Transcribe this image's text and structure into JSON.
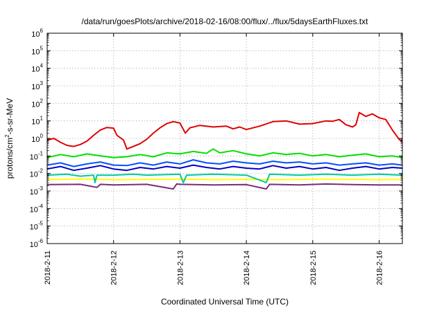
{
  "chart_data": {
    "type": "line",
    "title": "/data/run/goesPlots/archive/2018-02-16/08:00/flux/../flux/5daysEarthFluxes.txt",
    "xlabel": "Coordinated Universal Time (UTC)",
    "ylabel_prefix": "protons/cm",
    "ylabel_sup": "2",
    "ylabel_suffix": "-s-sr-MeV",
    "yscale": "log",
    "ylim_exp": [
      -6,
      6
    ],
    "ytick_exponents": [
      -6,
      -5,
      -4,
      -3,
      -2,
      -1,
      0,
      1,
      2,
      3,
      4,
      5,
      6
    ],
    "ytick_base": "10",
    "xlim_days": [
      0,
      5.35
    ],
    "x_ticks": [
      {
        "label": "2018-2-11",
        "day": 0
      },
      {
        "label": "2018-2-12",
        "day": 1
      },
      {
        "label": "2018-2-13",
        "day": 2
      },
      {
        "label": "2018-2-14",
        "day": 3
      },
      {
        "label": "2018-2-15",
        "day": 4
      },
      {
        "label": "2018-2-16",
        "day": 5
      }
    ],
    "grid": true,
    "series": [
      {
        "color": "#7a2a7a",
        "points": [
          [
            0,
            0.0023
          ],
          [
            0.5,
            0.0024
          ],
          [
            0.75,
            0.0016
          ],
          [
            0.8,
            0.0024
          ],
          [
            1.0,
            0.0022
          ],
          [
            1.5,
            0.0024
          ],
          [
            1.9,
            0.0013
          ],
          [
            1.95,
            0.0025
          ],
          [
            2.0,
            0.0024
          ],
          [
            2.5,
            0.0022
          ],
          [
            3.0,
            0.0023
          ],
          [
            3.3,
            0.0013
          ],
          [
            3.35,
            0.0024
          ],
          [
            3.8,
            0.0022
          ],
          [
            4.2,
            0.0025
          ],
          [
            4.6,
            0.0023
          ],
          [
            5.0,
            0.0022
          ],
          [
            5.35,
            0.0022
          ]
        ]
      },
      {
        "color": "#ffff00",
        "points": [
          [
            0,
            0.0045
          ],
          [
            0.5,
            0.0048
          ],
          [
            1.0,
            0.0044
          ],
          [
            1.5,
            0.0046
          ],
          [
            2.0,
            0.0047
          ],
          [
            2.5,
            0.0045
          ],
          [
            3.0,
            0.0046
          ],
          [
            3.5,
            0.0044
          ],
          [
            4.0,
            0.0047
          ],
          [
            4.5,
            0.0046
          ],
          [
            5.0,
            0.0045
          ],
          [
            5.35,
            0.0046
          ]
        ]
      },
      {
        "color": "#00c8a0",
        "points": [
          [
            0,
            0.008
          ],
          [
            0.3,
            0.009
          ],
          [
            0.5,
            0.007
          ],
          [
            0.7,
            0.008
          ],
          [
            0.72,
            0.003
          ],
          [
            0.75,
            0.008
          ],
          [
            1.0,
            0.008
          ],
          [
            1.3,
            0.009
          ],
          [
            1.5,
            0.008
          ],
          [
            2.0,
            0.009
          ],
          [
            2.05,
            0.003
          ],
          [
            2.1,
            0.008
          ],
          [
            2.5,
            0.009
          ],
          [
            3.0,
            0.008
          ],
          [
            3.3,
            0.003
          ],
          [
            3.35,
            0.009
          ],
          [
            3.8,
            0.008
          ],
          [
            4.2,
            0.009
          ],
          [
            4.6,
            0.008
          ],
          [
            5.0,
            0.009
          ],
          [
            5.35,
            0.008
          ]
        ]
      },
      {
        "color": "#0000c8",
        "points": [
          [
            0,
            0.018
          ],
          [
            0.2,
            0.025
          ],
          [
            0.4,
            0.015
          ],
          [
            0.6,
            0.02
          ],
          [
            0.8,
            0.028
          ],
          [
            1.0,
            0.018
          ],
          [
            1.2,
            0.015
          ],
          [
            1.4,
            0.022
          ],
          [
            1.6,
            0.018
          ],
          [
            1.8,
            0.025
          ],
          [
            2.0,
            0.02
          ],
          [
            2.2,
            0.03
          ],
          [
            2.4,
            0.022
          ],
          [
            2.6,
            0.018
          ],
          [
            2.8,
            0.025
          ],
          [
            3.0,
            0.02
          ],
          [
            3.2,
            0.018
          ],
          [
            3.4,
            0.028
          ],
          [
            3.6,
            0.02
          ],
          [
            3.8,
            0.025
          ],
          [
            4.0,
            0.018
          ],
          [
            4.2,
            0.022
          ],
          [
            4.4,
            0.015
          ],
          [
            4.6,
            0.02
          ],
          [
            4.8,
            0.025
          ],
          [
            5.0,
            0.018
          ],
          [
            5.2,
            0.022
          ],
          [
            5.35,
            0.02
          ]
        ]
      },
      {
        "color": "#0050ff",
        "points": [
          [
            0,
            0.03
          ],
          [
            0.2,
            0.04
          ],
          [
            0.4,
            0.025
          ],
          [
            0.6,
            0.035
          ],
          [
            0.8,
            0.045
          ],
          [
            1.0,
            0.03
          ],
          [
            1.2,
            0.028
          ],
          [
            1.4,
            0.04
          ],
          [
            1.6,
            0.03
          ],
          [
            1.8,
            0.045
          ],
          [
            2.0,
            0.035
          ],
          [
            2.2,
            0.06
          ],
          [
            2.4,
            0.04
          ],
          [
            2.6,
            0.035
          ],
          [
            2.8,
            0.05
          ],
          [
            3.0,
            0.04
          ],
          [
            3.2,
            0.035
          ],
          [
            3.4,
            0.05
          ],
          [
            3.6,
            0.04
          ],
          [
            3.8,
            0.045
          ],
          [
            4.0,
            0.035
          ],
          [
            4.2,
            0.04
          ],
          [
            4.4,
            0.03
          ],
          [
            4.6,
            0.035
          ],
          [
            4.8,
            0.04
          ],
          [
            5.0,
            0.03
          ],
          [
            5.2,
            0.035
          ],
          [
            5.35,
            0.03
          ]
        ]
      },
      {
        "color": "#00e000",
        "points": [
          [
            0,
            0.08
          ],
          [
            0.2,
            0.12
          ],
          [
            0.4,
            0.09
          ],
          [
            0.6,
            0.13
          ],
          [
            0.8,
            0.1
          ],
          [
            1.0,
            0.08
          ],
          [
            1.2,
            0.09
          ],
          [
            1.4,
            0.12
          ],
          [
            1.6,
            0.09
          ],
          [
            1.8,
            0.15
          ],
          [
            2.0,
            0.13
          ],
          [
            2.2,
            0.18
          ],
          [
            2.4,
            0.14
          ],
          [
            2.5,
            0.25
          ],
          [
            2.6,
            0.15
          ],
          [
            2.8,
            0.2
          ],
          [
            3.0,
            0.13
          ],
          [
            3.2,
            0.1
          ],
          [
            3.4,
            0.15
          ],
          [
            3.6,
            0.12
          ],
          [
            3.8,
            0.14
          ],
          [
            4.0,
            0.1
          ],
          [
            4.2,
            0.12
          ],
          [
            4.4,
            0.09
          ],
          [
            4.6,
            0.11
          ],
          [
            4.8,
            0.13
          ],
          [
            5.0,
            0.09
          ],
          [
            5.2,
            0.1
          ],
          [
            5.35,
            0.08
          ]
        ]
      },
      {
        "color": "#e00000",
        "points": [
          [
            0,
            0.8
          ],
          [
            0.1,
            1.0
          ],
          [
            0.2,
            0.6
          ],
          [
            0.3,
            0.4
          ],
          [
            0.4,
            0.35
          ],
          [
            0.5,
            0.45
          ],
          [
            0.6,
            0.7
          ],
          [
            0.7,
            1.5
          ],
          [
            0.8,
            3.0
          ],
          [
            0.9,
            4.2
          ],
          [
            1.0,
            3.8
          ],
          [
            1.05,
            1.5
          ],
          [
            1.15,
            0.8
          ],
          [
            1.2,
            0.25
          ],
          [
            1.3,
            0.35
          ],
          [
            1.4,
            0.5
          ],
          [
            1.5,
            0.9
          ],
          [
            1.6,
            2.0
          ],
          [
            1.7,
            4.0
          ],
          [
            1.8,
            7.0
          ],
          [
            1.9,
            9.0
          ],
          [
            2.0,
            7.5
          ],
          [
            2.08,
            2.0
          ],
          [
            2.15,
            4.0
          ],
          [
            2.3,
            5.5
          ],
          [
            2.5,
            4.5
          ],
          [
            2.7,
            5.0
          ],
          [
            2.8,
            3.5
          ],
          [
            2.9,
            4.5
          ],
          [
            3.0,
            3.2
          ],
          [
            3.2,
            5.0
          ],
          [
            3.4,
            9.0
          ],
          [
            3.6,
            10.0
          ],
          [
            3.8,
            6.5
          ],
          [
            4.0,
            7.0
          ],
          [
            4.2,
            10.0
          ],
          [
            4.3,
            9.5
          ],
          [
            4.4,
            12.0
          ],
          [
            4.5,
            6.0
          ],
          [
            4.6,
            4.5
          ],
          [
            4.65,
            6.0
          ],
          [
            4.7,
            30.0
          ],
          [
            4.8,
            18.0
          ],
          [
            4.9,
            25.0
          ],
          [
            5.0,
            15.0
          ],
          [
            5.1,
            12.0
          ],
          [
            5.2,
            3.0
          ],
          [
            5.3,
            0.9
          ],
          [
            5.35,
            0.6
          ]
        ]
      }
    ]
  }
}
